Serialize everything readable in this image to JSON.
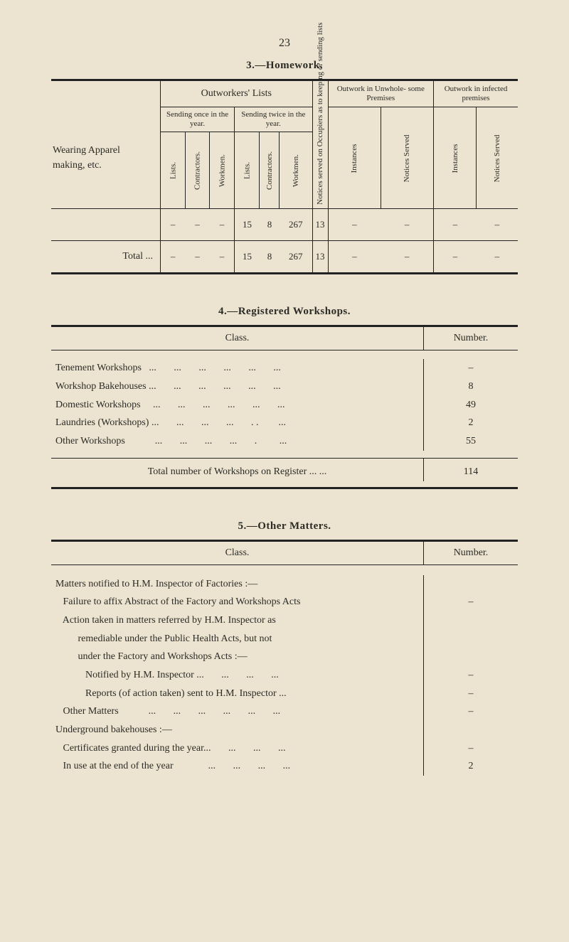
{
  "page_number": "23",
  "section3": {
    "heading": "3.—Homework.",
    "row_header_1": "Wearing Apparel",
    "row_header_2": "making, etc.",
    "outworkers_lists": "Outworkers' Lists",
    "sending_once": "Sending once\nin the year.",
    "sending_twice": "Sending twice\nin the year.",
    "col_lists": "Lists.",
    "col_contractors": "Contractors.",
    "col_workmen": "Workmen.",
    "col_notices_occ": "Notices served on Occupiers\nas to keeping or sending lists",
    "col_outwork_unwhole": "Outwork in\nUnwhole-\nsome\nPremises",
    "col_outwork_infected": "Outwork\nin\ninfected\npremises",
    "col_instances": "Instances",
    "col_notices_served": "Notices Served",
    "total_label": "Total     ...",
    "row1": {
      "c1": "–",
      "c2": "–",
      "c3": "–",
      "c4": "15",
      "c5": "8",
      "c6": "267",
      "c7": "13",
      "c8": "–",
      "c9": "–",
      "c10": "–",
      "c11": "–"
    },
    "row2": {
      "c1": "–",
      "c2": "–",
      "c3": "–",
      "c4": "15",
      "c5": "8",
      "c6": "267",
      "c7": "13",
      "c8": "–",
      "c9": "–",
      "c10": "–",
      "c11": "–"
    }
  },
  "section4": {
    "heading": "4.—Registered Workshops.",
    "class_hdr": "Class.",
    "number_hdr": "Number.",
    "rows": [
      {
        "label": "Tenement Workshops   ...       ...       ...       ...       ...       ...",
        "value": "–"
      },
      {
        "label": "Workshop Bakehouses ...       ...       ...       ...       ...       ...",
        "value": "8"
      },
      {
        "label": "Domestic Workshops     ...       ...       ...       ...       ...       ...",
        "value": "49"
      },
      {
        "label": "Laundries (Workshops) ...       ...       ...       ...       . .        ...",
        "value": "2"
      },
      {
        "label": "Other Workshops            ...       ...       ...       ...       .         ...",
        "value": "55"
      }
    ],
    "total": {
      "label": "Total number of Workshops on Register  ...       ...",
      "value": "114"
    }
  },
  "section5": {
    "heading": "5.—Other Matters.",
    "class_hdr": "Class.",
    "number_hdr": "Number.",
    "lines": [
      {
        "text": "Matters notified to H.M. Inspector of Factories :—",
        "value": ""
      },
      {
        "text": "   Failure to affix Abstract of the Factory and Workshops Acts",
        "value": "–"
      },
      {
        "text": "   Action taken in matters referred by H.M. Inspector as",
        "value": ""
      },
      {
        "text": "         remediable under the Public Health Acts, but not",
        "value": ""
      },
      {
        "text": "         under the Factory and Workshops Acts :—",
        "value": ""
      },
      {
        "text": "            Notified by H.M. Inspector ...       ...       ...       ...",
        "value": "–"
      },
      {
        "text": "            Reports (of action taken) sent to H.M. Inspector ...",
        "value": "–"
      },
      {
        "text": "   Other Matters            ...       ...       ...       ...       ...       ...",
        "value": "–"
      },
      {
        "text": "Underground bakehouses :—",
        "value": ""
      },
      {
        "text": "   Certificates granted during the year...       ...       ...       ...",
        "value": "–"
      },
      {
        "text": "   In use at the end of the year              ...       ...       ...       ...",
        "value": "2"
      }
    ]
  }
}
